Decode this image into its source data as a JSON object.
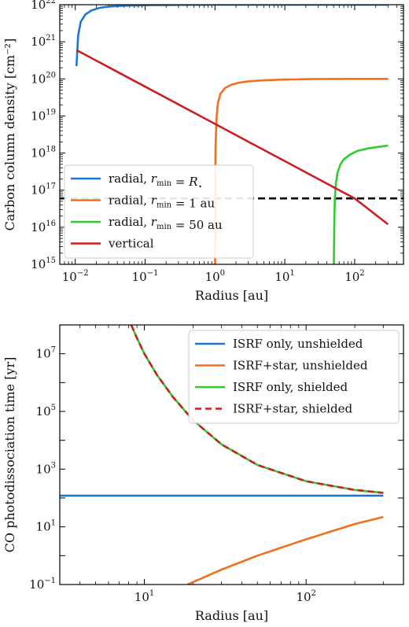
{
  "chart_data": [
    {
      "type": "line",
      "xscale": "log",
      "yscale": "log",
      "xlim": [
        0.006,
        500
      ],
      "ylim": [
        1000000000000000.0,
        1e+22
      ],
      "xlabel": "Radius [au]",
      "ylabel": "Carbon column density [cm⁻²]",
      "xticks": [
        {
          "value": 0.01,
          "base": "10",
          "exp": "−2"
        },
        {
          "value": 0.1,
          "base": "10",
          "exp": "−1"
        },
        {
          "value": 1,
          "base": "10",
          "exp": "0"
        },
        {
          "value": 10,
          "base": "10",
          "exp": "1"
        },
        {
          "value": 100,
          "base": "10",
          "exp": "2"
        }
      ],
      "yticks": [
        {
          "value": 1000000000000000.0,
          "base": "10",
          "exp": "15"
        },
        {
          "value": 1e+16,
          "base": "10",
          "exp": "16"
        },
        {
          "value": 1e+17,
          "base": "10",
          "exp": "17"
        },
        {
          "value": 1e+18,
          "base": "10",
          "exp": "18"
        },
        {
          "value": 1e+19,
          "base": "10",
          "exp": "19"
        },
        {
          "value": 1e+20,
          "base": "10",
          "exp": "20"
        },
        {
          "value": 1e+21,
          "base": "10",
          "exp": "21"
        },
        {
          "value": 1e+22,
          "base": "10",
          "exp": "22"
        }
      ],
      "legend": "lower-left",
      "series": [
        {
          "name": "radial, r_min = R⋆",
          "color": "#1f77d4",
          "x": [
            0.0104,
            0.011,
            0.012,
            0.014,
            0.017,
            0.022,
            0.03,
            0.05,
            0.1,
            0.3,
            1,
            10,
            300
          ],
          "y": [
            2.2e+20,
            1.5e+21,
            3.5e+21,
            5.5e+21,
            7e+21,
            8.2e+21,
            8.9e+21,
            9.4e+21,
            9.7e+21,
            9.9e+21,
            1e+22,
            1e+22,
            1e+22
          ]
        },
        {
          "name": "radial, r_min = 1 au",
          "color": "#f0701e",
          "x": [
            1.005,
            1.01,
            1.02,
            1.05,
            1.1,
            1.2,
            1.4,
            1.7,
            2.2,
            3,
            5,
            10,
            30,
            100,
            300
          ],
          "y": [
            1000000000000000.0,
            2e+17,
            1.5e+18,
            8e+18,
            2.2e+19,
            4e+19,
            5.7e+19,
            6.9e+19,
            7.9e+19,
            8.6e+19,
            9.2e+19,
            9.6e+19,
            9.9e+19,
            1e+20,
            1e+20
          ]
        },
        {
          "name": "radial, r_min = 50 au",
          "color": "#2ecc2e",
          "x": [
            50.3,
            51,
            52,
            54,
            57,
            62,
            70,
            85,
            110,
            160,
            300
          ],
          "y": [
            1000000000000000.0,
            1e+16,
            6e+16,
            1.6e+17,
            3e+17,
            4.8e+17,
            6.8e+17,
            9e+17,
            1.15e+18,
            1.35e+18,
            1.6e+18
          ]
        },
        {
          "name": "vertical",
          "color": "#cc1f1f",
          "x": [
            0.0104,
            100,
            300
          ],
          "y": [
            6e+20,
            6e+16,
            1.2e+16
          ]
        }
      ],
      "reference_lines": [
        {
          "orientation": "horizontal",
          "value": 6e+16,
          "style": "dashed",
          "color": "#000000"
        }
      ]
    },
    {
      "type": "line",
      "xscale": "log",
      "yscale": "log",
      "xlim": [
        3,
        400
      ],
      "ylim": [
        0.1,
        100000000.0
      ],
      "xlabel": "Radius [au]",
      "ylabel": "CO photodissociation time [yr]",
      "xticks": [
        {
          "value": 10,
          "base": "10",
          "exp": "1"
        },
        {
          "value": 100,
          "base": "10",
          "exp": "2"
        }
      ],
      "yticks": [
        {
          "value": 0.1,
          "base": "10",
          "exp": "−1"
        },
        {
          "value": 10,
          "base": "10",
          "exp": "1"
        },
        {
          "value": 1000,
          "base": "10",
          "exp": "3"
        },
        {
          "value": 100000,
          "base": "10",
          "exp": "5"
        },
        {
          "value": 10000000,
          "base": "10",
          "exp": "7"
        }
      ],
      "legend": "upper-right",
      "series": [
        {
          "name": "ISRF only, unshielded",
          "color": "#1f77d4",
          "style": "solid",
          "x": [
            3,
            300
          ],
          "y": [
            120,
            120
          ]
        },
        {
          "name": "ISRF+star, unshielded",
          "color": "#f0701e",
          "style": "solid",
          "x": [
            18.5,
            30,
            50,
            100,
            200,
            300
          ],
          "y": [
            0.1,
            0.33,
            1.0,
            3.7,
            12.5,
            22
          ]
        },
        {
          "name": "ISRF only, shielded",
          "color": "#2ecc2e",
          "style": "solid",
          "x": [
            8.3,
            9,
            10,
            12,
            15,
            20,
            30,
            50,
            100,
            200,
            300
          ],
          "y": [
            100000000.0,
            35000000.0,
            10000000.0,
            1800000.0,
            320000.0,
            50000.0,
            7200,
            1400,
            380,
            190,
            150
          ]
        },
        {
          "name": "ISRF+star, shielded",
          "color": "#cc1f1f",
          "style": "dashed",
          "x": [
            8.3,
            9,
            10,
            12,
            15,
            20,
            30,
            50,
            100,
            200,
            300
          ],
          "y": [
            100000000.0,
            35000000.0,
            10000000.0,
            1800000.0,
            320000.0,
            50000.0,
            7200,
            1400,
            380,
            190,
            150
          ]
        }
      ]
    }
  ]
}
